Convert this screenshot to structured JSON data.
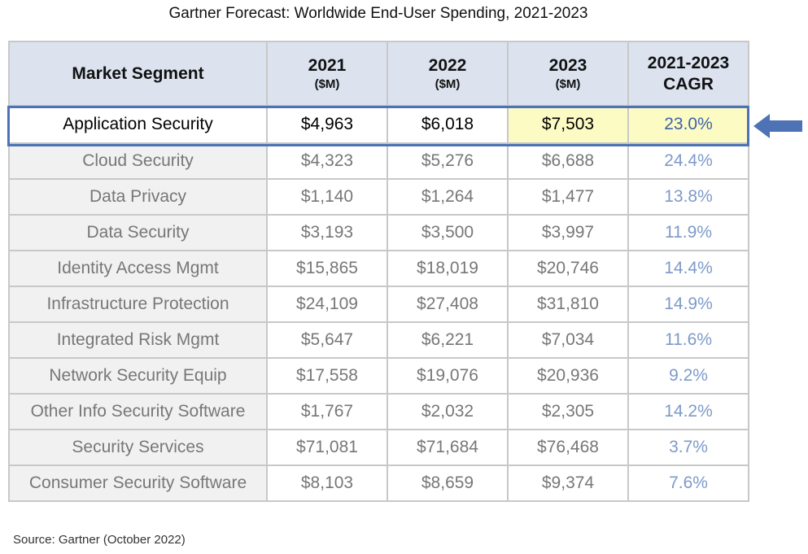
{
  "title": "Gartner Forecast: Worldwide End-User Spending, 2021-2023",
  "source": "Source:  Gartner (October 2022)",
  "header": {
    "segment": "Market Segment",
    "y2021": "2021",
    "y2022": "2022",
    "y2023": "2023",
    "unit": "($M)",
    "cagr_line1": "2021-2023",
    "cagr_line2": "CAGR"
  },
  "colors": {
    "highlight_border": "#4d72b6",
    "highlight_fill": "#fdfbc4",
    "cagr_text": "#7d9ac9",
    "header_bg": "#dce3ef"
  },
  "icons": {
    "pointer": "arrow-left-icon"
  },
  "chart_data": {
    "type": "table",
    "title": "Gartner Forecast: Worldwide End-User Spending, 2021-2023",
    "columns": [
      "Market Segment",
      "2021 ($M)",
      "2022 ($M)",
      "2023 ($M)",
      "2021-2023 CAGR"
    ],
    "highlighted_row": "Application Security",
    "rows": [
      {
        "segment": "Application Security",
        "y2021": "$4,963",
        "y2022": "$6,018",
        "y2023": "$7,503",
        "cagr": "23.0%"
      },
      {
        "segment": "Cloud Security",
        "y2021": "$4,323",
        "y2022": "$5,276",
        "y2023": "$6,688",
        "cagr": "24.4%"
      },
      {
        "segment": "Data Privacy",
        "y2021": "$1,140",
        "y2022": "$1,264",
        "y2023": "$1,477",
        "cagr": "13.8%"
      },
      {
        "segment": "Data Security",
        "y2021": "$3,193",
        "y2022": "$3,500",
        "y2023": "$3,997",
        "cagr": "11.9%"
      },
      {
        "segment": "Identity Access Mgmt",
        "y2021": "$15,865",
        "y2022": "$18,019",
        "y2023": "$20,746",
        "cagr": "14.4%"
      },
      {
        "segment": "Infrastructure Protection",
        "y2021": "$24,109",
        "y2022": "$27,408",
        "y2023": "$31,810",
        "cagr": "14.9%"
      },
      {
        "segment": "Integrated Risk Mgmt",
        "y2021": "$5,647",
        "y2022": "$6,221",
        "y2023": "$7,034",
        "cagr": "11.6%"
      },
      {
        "segment": "Network Security Equip",
        "y2021": "$17,558",
        "y2022": "$19,076",
        "y2023": "$20,936",
        "cagr": "9.2%"
      },
      {
        "segment": "Other Info Security Software",
        "y2021": "$1,767",
        "y2022": "$2,032",
        "y2023": "$2,305",
        "cagr": "14.2%"
      },
      {
        "segment": "Security Services",
        "y2021": "$71,081",
        "y2022": "$71,684",
        "y2023": "$76,468",
        "cagr": "3.7%"
      },
      {
        "segment": "Consumer Security Software",
        "y2021": "$8,103",
        "y2022": "$8,659",
        "y2023": "$9,374",
        "cagr": "7.6%"
      }
    ]
  }
}
